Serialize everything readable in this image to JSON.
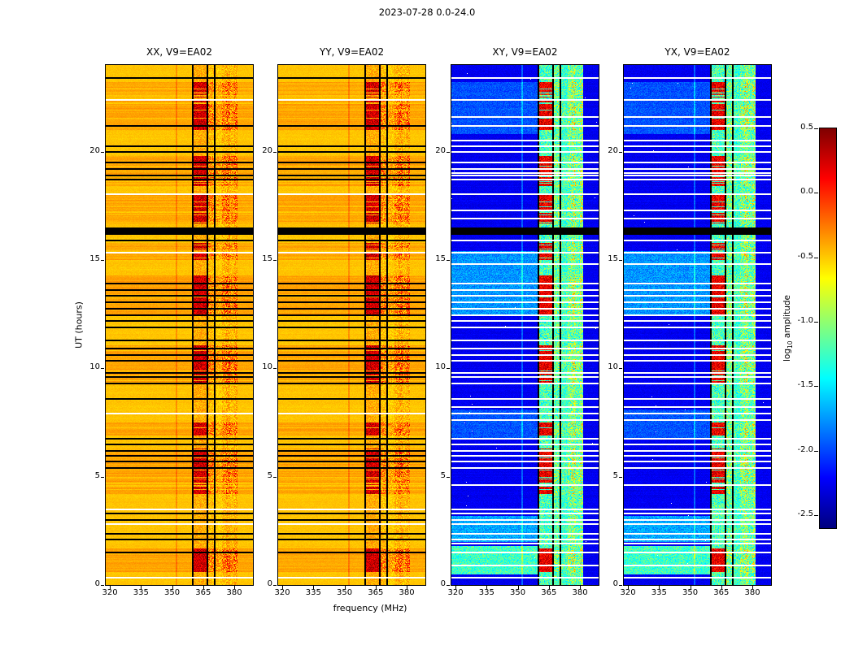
{
  "chart_data": {
    "type": "heatmap",
    "title": "2023-07-28 0.0-24.0",
    "xlabel": "frequency (MHz)",
    "ylabel": "UT (hours)",
    "x_range": [
      318,
      389
    ],
    "y_range": [
      0,
      24
    ],
    "x_ticks": [
      {
        "label": "320",
        "value": 320
      },
      {
        "label": "335",
        "value": 335
      },
      {
        "label": "350",
        "value": 350
      },
      {
        "label": "365",
        "value": 365
      },
      {
        "label": "380",
        "value": 380
      }
    ],
    "y_ticks": [
      {
        "label": "0",
        "value": 0
      },
      {
        "label": "5",
        "value": 5
      },
      {
        "label": "10",
        "value": 10
      },
      {
        "label": "15",
        "value": 15
      },
      {
        "label": "20",
        "value": 20
      }
    ],
    "panels": [
      {
        "title": "XX, V9=EA02",
        "polarization": "XX",
        "kind": "parallel-hand",
        "background_level": -0.5
      },
      {
        "title": "YY, V9=EA02",
        "polarization": "YY",
        "kind": "parallel-hand",
        "background_level": -0.5
      },
      {
        "title": "XY, V9=EA02",
        "polarization": "XY",
        "kind": "cross-hand",
        "background_level": -2.3
      },
      {
        "title": "YX, V9=EA02",
        "polarization": "YX",
        "kind": "cross-hand",
        "background_level": -2.3
      }
    ],
    "colorbar": {
      "label_prefix": "log",
      "label_sub": "10",
      "label_suffix": " amplitude",
      "colormap": "jet",
      "vmin": -2.6,
      "vmax": 0.5,
      "ticks": [
        {
          "label": "0.5",
          "value": 0.5
        },
        {
          "label": "0.0",
          "value": 0.0
        },
        {
          "label": "-0.5",
          "value": -0.5
        },
        {
          "label": "-1.0",
          "value": -1.0
        },
        {
          "label": "-1.5",
          "value": -1.5
        },
        {
          "label": "-2.0",
          "value": -2.0
        },
        {
          "label": "-2.5",
          "value": -2.5
        }
      ]
    },
    "rfi_bands": [
      {
        "f0": 360.3,
        "f1": 366.6,
        "type": "strong-intermittent"
      },
      {
        "f0": 367.2,
        "f1": 381.5,
        "type": "patchy"
      },
      {
        "f0": 351.8,
        "f1": 352.6,
        "type": "narrow-faint"
      }
    ],
    "flagged_channels": [
      359.9,
      366.9,
      370.6
    ],
    "flagged_band": {
      "t0": 16.15,
      "t1": 16.5
    },
    "flagged_rows": [
      1.5,
      2.1,
      2.36,
      3.0,
      3.3,
      5.4,
      5.7,
      5.96,
      6.2,
      6.5,
      6.75,
      8.6,
      9.3,
      9.6,
      9.8,
      10.35,
      10.6,
      10.9,
      11.3,
      11.9,
      12.2,
      12.45,
      12.75,
      13.05,
      13.35,
      13.6,
      13.9,
      15.9,
      18.7,
      18.9,
      19.2,
      19.5,
      20.0,
      20.25,
      21.2,
      23.4
    ],
    "white_rows": [
      0.35,
      2.8,
      3.5,
      7.9,
      15.35,
      18.05,
      22.4
    ],
    "cross_white_rows": [
      0.9,
      1.9,
      4.6,
      7.6,
      8.2,
      14.8,
      16.9,
      17.3,
      19.0,
      20.5,
      21.6
    ],
    "strong_intervals": [
      [
        0.6,
        1.7
      ],
      [
        4.2,
        6.3
      ],
      [
        6.9,
        7.5
      ],
      [
        9.3,
        11.1
      ],
      [
        12.5,
        14.3
      ],
      [
        15.0,
        15.8
      ],
      [
        16.7,
        18.0
      ],
      [
        18.4,
        19.8
      ],
      [
        21.0,
        23.2
      ]
    ],
    "clouds": [
      {
        "t0": 12.5,
        "t1": 15.4,
        "f0": 318,
        "f1": 360,
        "boost": 0.5
      },
      {
        "t0": 0.5,
        "t1": 1.8,
        "f0": 318,
        "f1": 362,
        "boost": 1.0
      },
      {
        "t0": 2.0,
        "t1": 3.2,
        "f0": 318,
        "f1": 362,
        "boost": 0.55
      },
      {
        "t0": 20.8,
        "t1": 23.2,
        "f0": 318,
        "f1": 360,
        "boost": 0.3
      },
      {
        "t0": 6.8,
        "t1": 8.1,
        "f0": 318,
        "f1": 360,
        "boost": 0.3
      }
    ]
  }
}
